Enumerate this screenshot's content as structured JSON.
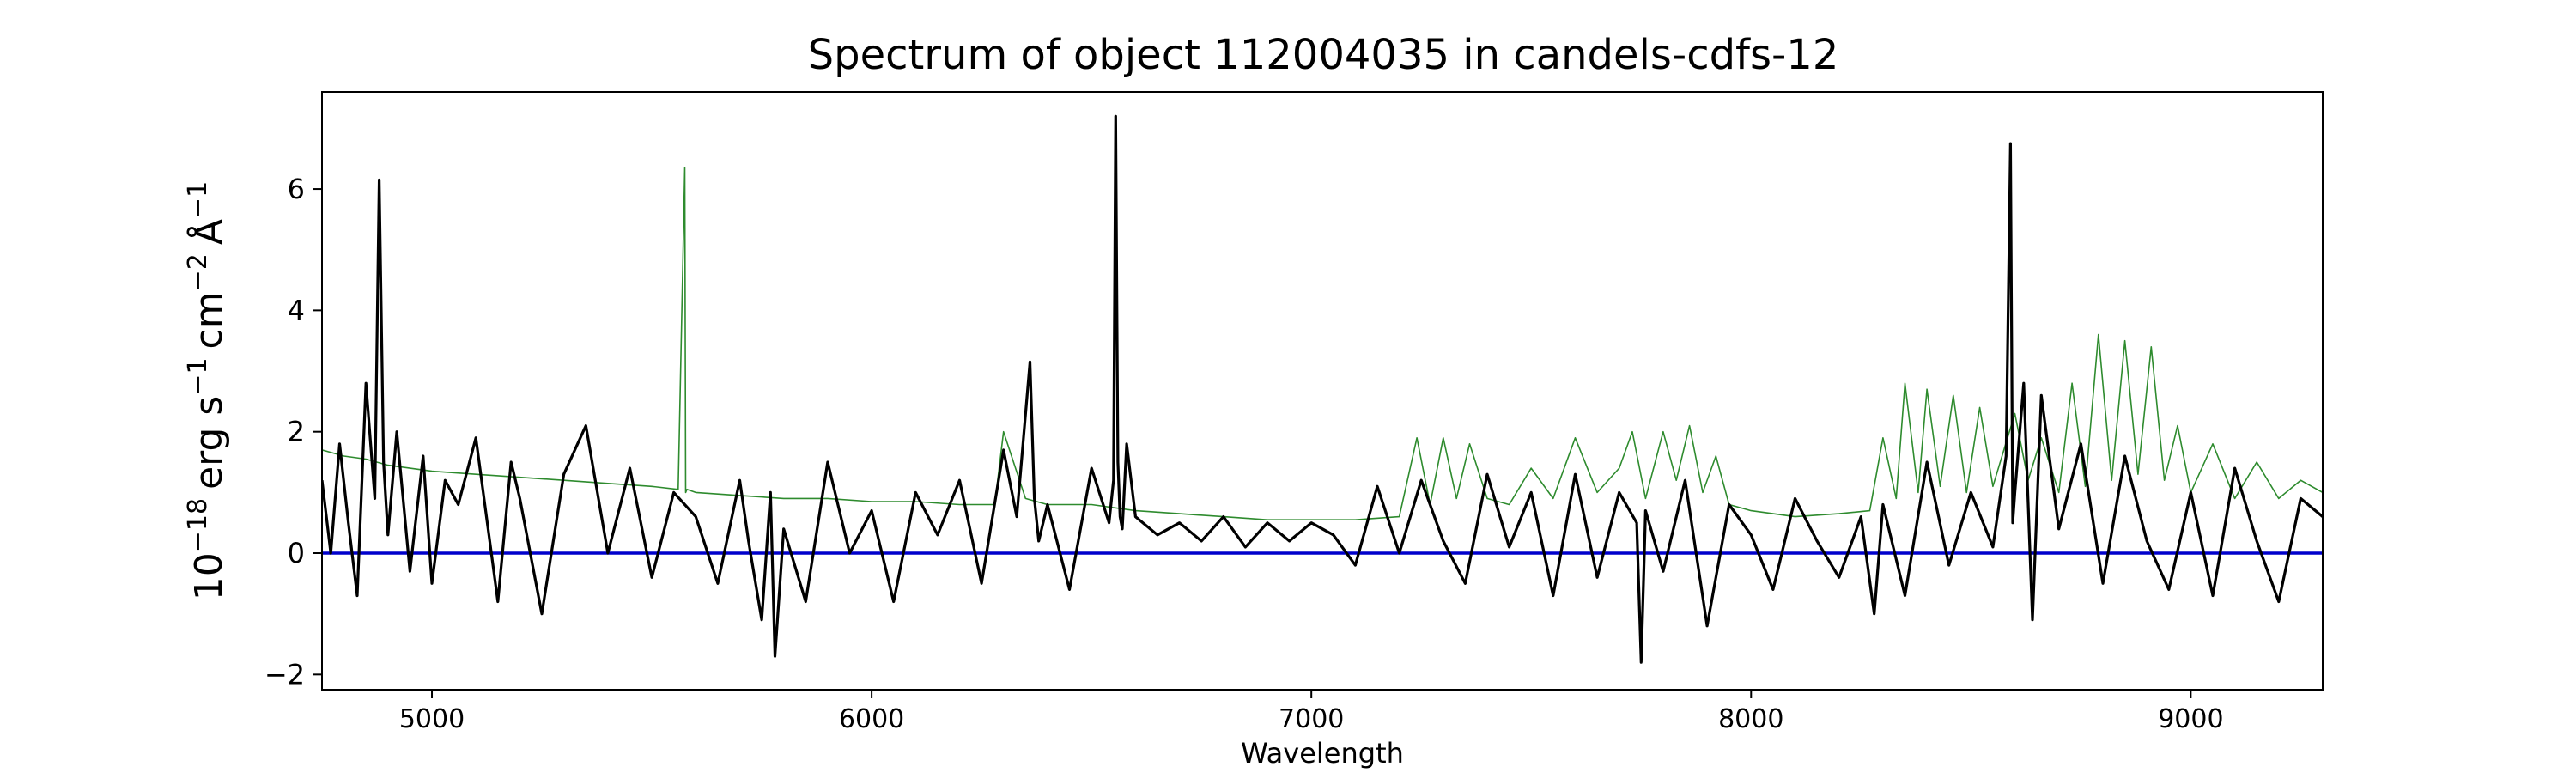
{
  "chart_data": {
    "type": "line",
    "title": "Spectrum of object 112004035 in candels-cdfs-12",
    "xlabel": "Wavelength",
    "ylabel": {
      "base": "10",
      "exp_base": "−18",
      "unit_erg": "erg s",
      "exp_s": "−1",
      "unit_cm": "cm",
      "exp_cm": "−2",
      "unit_A": "Å",
      "exp_A": "−1"
    },
    "xlim": [
      4750,
      9300
    ],
    "ylim": [
      -2.25,
      7.6
    ],
    "x_ticks": [
      5000,
      6000,
      7000,
      8000,
      9000
    ],
    "x_tick_labels": [
      "5000",
      "6000",
      "7000",
      "8000",
      "9000"
    ],
    "y_ticks": [
      -2,
      0,
      2,
      4,
      6
    ],
    "y_tick_labels": [
      "−2",
      "0",
      "2",
      "4",
      "6"
    ],
    "grid": false,
    "legend": "none",
    "series": [
      {
        "role": "error",
        "color": "#2e8b2e",
        "x": [
          4750,
          4800,
          4850,
          4900,
          4950,
          5000,
          5100,
          5200,
          5300,
          5400,
          5500,
          5560,
          5575,
          5577,
          5580,
          5600,
          5700,
          5800,
          5900,
          6000,
          6100,
          6200,
          6280,
          6300,
          6350,
          6400,
          6500,
          6600,
          6700,
          6800,
          6900,
          7000,
          7100,
          7200,
          7240,
          7270,
          7300,
          7330,
          7360,
          7400,
          7450,
          7500,
          7550,
          7600,
          7650,
          7700,
          7730,
          7760,
          7800,
          7830,
          7860,
          7890,
          7920,
          7950,
          8000,
          8050,
          8100,
          8200,
          8270,
          8300,
          8330,
          8350,
          8380,
          8400,
          8430,
          8460,
          8490,
          8520,
          8550,
          8600,
          8630,
          8660,
          8700,
          8730,
          8760,
          8790,
          8820,
          8850,
          8880,
          8910,
          8940,
          8970,
          9000,
          9050,
          9100,
          9150,
          9200,
          9250,
          9300
        ],
        "values": [
          1.7,
          1.6,
          1.55,
          1.45,
          1.4,
          1.35,
          1.3,
          1.25,
          1.2,
          1.15,
          1.1,
          1.05,
          6.35,
          1.0,
          1.05,
          1.0,
          0.95,
          0.9,
          0.9,
          0.85,
          0.85,
          0.8,
          0.8,
          2.0,
          0.9,
          0.8,
          0.8,
          0.7,
          0.65,
          0.6,
          0.55,
          0.55,
          0.55,
          0.6,
          1.9,
          0.8,
          1.9,
          0.9,
          1.8,
          0.9,
          0.8,
          1.4,
          0.9,
          1.9,
          1.0,
          1.4,
          2.0,
          0.9,
          2.0,
          1.2,
          2.1,
          1.0,
          1.6,
          0.8,
          0.7,
          0.65,
          0.6,
          0.65,
          0.7,
          1.9,
          0.9,
          2.8,
          1.0,
          2.7,
          1.1,
          2.6,
          1.0,
          2.4,
          1.1,
          2.3,
          1.2,
          1.9,
          1.0,
          2.8,
          1.1,
          3.6,
          1.2,
          3.5,
          1.3,
          3.4,
          1.2,
          2.1,
          1.0,
          1.8,
          0.9,
          1.5,
          0.9,
          1.2,
          1.0
        ]
      },
      {
        "role": "zero",
        "color": "#0000cc",
        "x": [
          4750,
          9300
        ],
        "values": [
          0,
          0
        ]
      },
      {
        "role": "flux",
        "color": "#000000",
        "x": [
          4750,
          4770,
          4790,
          4810,
          4830,
          4850,
          4870,
          4880,
          4890,
          4900,
          4920,
          4950,
          4980,
          5000,
          5030,
          5060,
          5100,
          5150,
          5180,
          5200,
          5250,
          5300,
          5350,
          5400,
          5450,
          5500,
          5550,
          5600,
          5650,
          5700,
          5720,
          5750,
          5770,
          5780,
          5800,
          5850,
          5900,
          5950,
          6000,
          6050,
          6100,
          6150,
          6200,
          6250,
          6300,
          6330,
          6360,
          6370,
          6380,
          6400,
          6450,
          6500,
          6540,
          6550,
          6555,
          6560,
          6565,
          6570,
          6580,
          6600,
          6650,
          6700,
          6750,
          6800,
          6850,
          6900,
          6950,
          7000,
          7050,
          7100,
          7150,
          7200,
          7250,
          7300,
          7350,
          7400,
          7450,
          7500,
          7550,
          7600,
          7650,
          7700,
          7740,
          7750,
          7760,
          7800,
          7850,
          7900,
          7950,
          8000,
          8050,
          8100,
          8150,
          8200,
          8250,
          8280,
          8300,
          8350,
          8400,
          8450,
          8500,
          8550,
          8580,
          8590,
          8595,
          8600,
          8620,
          8640,
          8660,
          8700,
          8750,
          8800,
          8850,
          8900,
          8950,
          9000,
          9050,
          9100,
          9150,
          9200,
          9250,
          9300
        ],
        "values": [
          1.2,
          0.0,
          1.8,
          0.5,
          -0.7,
          2.8,
          0.9,
          6.15,
          1.5,
          0.3,
          2.0,
          -0.3,
          1.6,
          -0.5,
          1.2,
          0.8,
          1.9,
          -0.8,
          1.5,
          0.9,
          -1.0,
          1.3,
          2.1,
          0.0,
          1.4,
          -0.4,
          1.0,
          0.6,
          -0.5,
          1.2,
          0.2,
          -1.1,
          1.0,
          -1.7,
          0.4,
          -0.8,
          1.5,
          0.0,
          0.7,
          -0.8,
          1.0,
          0.3,
          1.2,
          -0.5,
          1.7,
          0.6,
          3.15,
          0.9,
          0.2,
          0.8,
          -0.6,
          1.4,
          0.5,
          1.2,
          7.2,
          1.5,
          0.6,
          0.4,
          1.8,
          0.6,
          0.3,
          0.5,
          0.2,
          0.6,
          0.1,
          0.5,
          0.2,
          0.5,
          0.3,
          -0.2,
          1.1,
          0.0,
          1.2,
          0.2,
          -0.5,
          1.3,
          0.1,
          1.0,
          -0.7,
          1.3,
          -0.4,
          1.0,
          0.5,
          -1.8,
          0.7,
          -0.3,
          1.2,
          -1.2,
          0.8,
          0.3,
          -0.6,
          0.9,
          0.2,
          -0.4,
          0.6,
          -1.0,
          0.8,
          -0.7,
          1.5,
          -0.2,
          1.0,
          0.1,
          1.6,
          6.75,
          0.5,
          1.0,
          2.8,
          -1.1,
          2.6,
          0.4,
          1.8,
          -0.5,
          1.6,
          0.2,
          -0.6,
          1.0,
          -0.7,
          1.4,
          0.2,
          -0.8,
          0.9,
          0.6
        ]
      }
    ]
  }
}
